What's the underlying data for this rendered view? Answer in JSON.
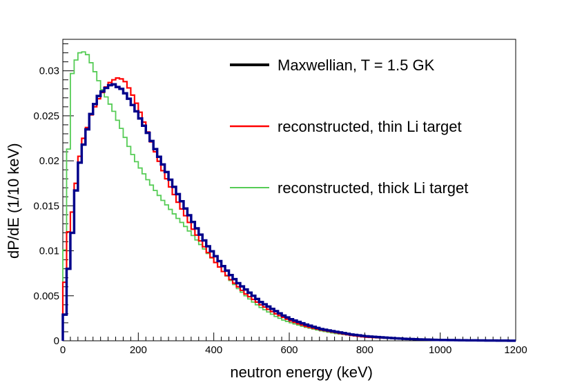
{
  "chart_data": {
    "type": "line",
    "title": "",
    "xlabel": "neutron energy (keV)",
    "ylabel": "dP/dE (1/10 keV)",
    "xlim": [
      0,
      1200
    ],
    "ylim": [
      0,
      0.0335
    ],
    "xticks": [
      0,
      200,
      400,
      600,
      800,
      1000,
      1200
    ],
    "xtick_labels": [
      "0",
      "200",
      "400",
      "600",
      "800",
      "1000",
      "1200"
    ],
    "yticks": [
      0,
      0.005,
      0.01,
      0.015,
      0.02,
      0.025,
      0.03
    ],
    "ytick_labels": [
      "0",
      "0.005",
      "0.01",
      "0.015",
      "0.02",
      "0.025",
      "0.03"
    ],
    "grid": false,
    "legend_position": "top-right",
    "bin_width": 10,
    "series": [
      {
        "name": "Maxwellian, T = 1.5 GK",
        "color": "#00008b",
        "x": [
          0,
          10,
          20,
          30,
          40,
          50,
          60,
          70,
          80,
          90,
          100,
          110,
          120,
          130,
          140,
          150,
          160,
          170,
          180,
          190,
          200,
          220,
          240,
          260,
          280,
          300,
          320,
          340,
          360,
          380,
          400,
          420,
          440,
          460,
          480,
          500,
          520,
          540,
          560,
          580,
          600,
          640,
          680,
          720,
          760,
          800,
          850,
          900,
          950,
          1000,
          1050,
          1100,
          1150,
          1200
        ],
        "values": [
          0.0029,
          0.008,
          0.012,
          0.0167,
          0.0198,
          0.0218,
          0.0235,
          0.0252,
          0.0263,
          0.0272,
          0.0277,
          0.0281,
          0.0284,
          0.0285,
          0.0282,
          0.028,
          0.0275,
          0.0269,
          0.0262,
          0.0255,
          0.0247,
          0.0231,
          0.0213,
          0.0196,
          0.0179,
          0.0163,
          0.0147,
          0.0132,
          0.0118,
          0.0105,
          0.0094,
          0.0083,
          0.0073,
          0.0064,
          0.0057,
          0.005,
          0.0043,
          0.0038,
          0.0033,
          0.0028,
          0.0024,
          0.0018,
          0.0013,
          0.001,
          0.0007,
          0.0005,
          0.00035,
          0.00022,
          0.00014,
          9e-05,
          6e-05,
          4e-05,
          2e-05,
          1e-05
        ]
      },
      {
        "name": "reconstructed, thin Li target",
        "color": "#ff0000",
        "x": [
          0,
          10,
          20,
          30,
          40,
          50,
          60,
          70,
          80,
          90,
          100,
          110,
          120,
          130,
          140,
          150,
          160,
          170,
          180,
          190,
          200,
          220,
          240,
          260,
          280,
          300,
          320,
          340,
          360,
          380,
          400,
          420,
          440,
          460,
          480,
          500,
          520,
          540,
          560,
          580,
          600,
          640,
          680,
          720,
          760,
          800,
          850,
          900,
          950,
          1000,
          1050,
          1100,
          1150,
          1200
        ],
        "values": [
          0.0065,
          0.0121,
          0.0143,
          0.0175,
          0.0205,
          0.0225,
          0.0237,
          0.0251,
          0.026,
          0.0269,
          0.0276,
          0.0282,
          0.0287,
          0.029,
          0.0292,
          0.0291,
          0.0288,
          0.0281,
          0.0273,
          0.0264,
          0.0254,
          0.0232,
          0.021,
          0.0189,
          0.0171,
          0.0154,
          0.0139,
          0.0124,
          0.0111,
          0.0098,
          0.0087,
          0.0077,
          0.0068,
          0.006,
          0.0052,
          0.0046,
          0.004,
          0.0035,
          0.003,
          0.0026,
          0.0022,
          0.0016,
          0.0012,
          0.0009,
          0.0006,
          0.0004,
          0.0003,
          0.0002,
          0.00012,
          8e-05,
          5e-05,
          3e-05,
          2e-05,
          1e-05
        ]
      },
      {
        "name": "reconstructed, thick Li target",
        "color": "#55cc55",
        "x": [
          0,
          10,
          20,
          30,
          40,
          50,
          60,
          70,
          80,
          90,
          100,
          110,
          120,
          130,
          140,
          150,
          160,
          170,
          180,
          190,
          200,
          220,
          240,
          260,
          280,
          300,
          320,
          340,
          360,
          380,
          400,
          420,
          440,
          460,
          480,
          500,
          520,
          540,
          560,
          580,
          600,
          640,
          680,
          720,
          760,
          800,
          850,
          900,
          950,
          1000,
          1050,
          1100,
          1150,
          1200
        ],
        "values": [
          0.0101,
          0.0213,
          0.0297,
          0.0312,
          0.032,
          0.0321,
          0.0318,
          0.0309,
          0.0299,
          0.0289,
          0.0279,
          0.0271,
          0.0263,
          0.0255,
          0.0245,
          0.0236,
          0.0226,
          0.0216,
          0.0207,
          0.0199,
          0.0192,
          0.0179,
          0.0167,
          0.0156,
          0.0146,
          0.0136,
          0.0127,
          0.0117,
          0.0107,
          0.0097,
          0.0087,
          0.0077,
          0.0067,
          0.0058,
          0.005,
          0.0043,
          0.0037,
          0.0032,
          0.0027,
          0.0023,
          0.002,
          0.0015,
          0.0011,
          0.0008,
          0.0006,
          0.0004,
          0.00028,
          0.00018,
          0.00011,
          7e-05,
          4e-05,
          3e-05,
          2e-05,
          1e-05
        ]
      }
    ]
  }
}
